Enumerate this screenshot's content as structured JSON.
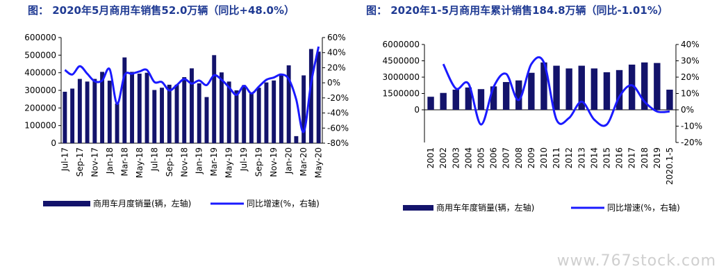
{
  "titles": {
    "left": "图：  2020年5月商用车销售52.0万辆（同比+48.0%）",
    "right": "图：  2020年1-5月商用车累计销售184.8万辆（同比-1.01%）"
  },
  "watermark": "www.767stock.com",
  "colors": {
    "bar": "#13136b",
    "line": "#1a1aff"
  },
  "chart_data": [
    {
      "type": "bar",
      "categories": [
        "Jul-17",
        "Aug-17",
        "Sep-17",
        "Oct-17",
        "Nov-17",
        "Dec-17",
        "Jan-18",
        "Feb-18",
        "Mar-18",
        "Apr-18",
        "May-18",
        "Jun-18",
        "Jul-18",
        "Aug-18",
        "Sep-18",
        "Oct-18",
        "Nov-18",
        "Dec-18",
        "Jan-19",
        "Feb-19",
        "Mar-19",
        "Apr-19",
        "May-19",
        "Jun-19",
        "Jul-19",
        "Aug-19",
        "Sep-19",
        "Oct-19",
        "Nov-19",
        "Dec-19",
        "Jan-20",
        "Feb-20",
        "Mar-20",
        "Apr-20",
        "May-20"
      ],
      "xtick_labels": [
        "Jul-17",
        "Sep-17",
        "Nov-17",
        "Jan-18",
        "Mar-18",
        "May-18",
        "Jul-18",
        "Sep-18",
        "Nov-18",
        "Jan-19",
        "Mar-19",
        "May-19",
        "Jul-19",
        "Sep-19",
        "Nov-19",
        "Jan-20",
        "Mar-20",
        "May-20"
      ],
      "series": [
        {
          "name": "商用车月度销量(辆，左轴)",
          "type": "bar",
          "axis": "left",
          "values": [
            292000,
            310000,
            365000,
            350000,
            365000,
            405000,
            355000,
            225000,
            487000,
            405000,
            395000,
            400000,
            302000,
            315000,
            332000,
            332000,
            375000,
            425000,
            340000,
            262000,
            500000,
            402000,
            350000,
            300000,
            330000,
            285000,
            315000,
            345000,
            356000,
            395000,
            442000,
            40000,
            385000,
            535000,
            520000
          ]
        },
        {
          "name": "同比增速(%，右轴)",
          "type": "line",
          "axis": "right",
          "values": [
            17,
            11,
            22,
            12,
            2,
            3,
            18,
            -28,
            10,
            12,
            15,
            17,
            1,
            1,
            -10,
            -3,
            5,
            -1,
            3,
            -3,
            10,
            4,
            -6,
            -16,
            -4,
            -14,
            -5,
            4,
            7,
            11,
            5,
            -22,
            -65,
            0,
            48
          ]
        }
      ],
      "ylim_left": [
        0,
        600000
      ],
      "yticks_left": [
        "0",
        "100000",
        "200000",
        "300000",
        "400000",
        "500000",
        "600000"
      ],
      "ylim_right": [
        -80,
        60
      ],
      "yticks_right": [
        "-80%",
        "-60%",
        "-40%",
        "-20%",
        "0%",
        "20%",
        "40%",
        "60%"
      ],
      "legend": [
        "商用车月度销量(辆，左轴)",
        "同比增速(%，右轴)"
      ]
    },
    {
      "type": "bar",
      "categories": [
        "2001",
        "2002",
        "2003",
        "2004",
        "2005",
        "2006",
        "2007",
        "2008",
        "2009",
        "2010",
        "2011",
        "2012",
        "2013",
        "2014",
        "2015",
        "2016",
        "2017",
        "2018",
        "2019",
        "2020.1-5"
      ],
      "series": [
        {
          "name": "商用车年度销量(辆，左轴)",
          "type": "bar",
          "axis": "left",
          "values": [
            1200000,
            1550000,
            1850000,
            2050000,
            1900000,
            2150000,
            2550000,
            2700000,
            3400000,
            4350000,
            4050000,
            3800000,
            4050000,
            3800000,
            3450000,
            3650000,
            4150000,
            4350000,
            4300000,
            1850000
          ]
        },
        {
          "name": "同比增速(%，右轴)",
          "type": "line",
          "axis": "right",
          "values": [
            null,
            28,
            13,
            16,
            -9,
            14,
            22,
            6,
            28,
            29,
            -6,
            -5,
            5,
            -6,
            -9,
            8,
            15,
            5,
            -1,
            -1
          ]
        }
      ],
      "ylim_left": [
        -3000000,
        6000000
      ],
      "yticks_left": [
        "0",
        "1500000",
        "3000000",
        "4500000",
        "6000000"
      ],
      "ylim_right": [
        -20,
        40
      ],
      "yticks_right": [
        "-20%",
        "-10%",
        "0%",
        "10%",
        "20%",
        "30%",
        "40%"
      ],
      "legend": [
        "商用车年度销量(辆，左轴)",
        "同比增速(%，右轴)"
      ]
    }
  ]
}
